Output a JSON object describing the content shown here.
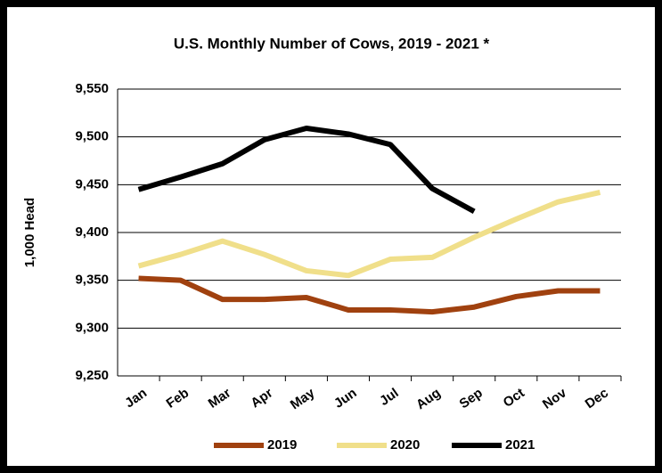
{
  "chart_data": {
    "type": "line",
    "title": "U.S. Monthly Number of Cows, 2019 - 2021 *",
    "y_label": "1,000 Head",
    "categories": [
      "Jan",
      "Feb",
      "Mar",
      "Apr",
      "May",
      "Jun",
      "Jul",
      "Aug",
      "Sep",
      "Oct",
      "Nov",
      "Dec"
    ],
    "series": [
      {
        "name": "2019",
        "color": "#a0410f",
        "values": [
          9352,
          9350,
          9330,
          9330,
          9332,
          9319,
          9319,
          9317,
          9322,
          9333,
          9339,
          9339
        ]
      },
      {
        "name": "2020",
        "color": "#f0df8a",
        "values": [
          9365,
          9377,
          9391,
          9377,
          9360,
          9355,
          9372,
          9374,
          9395,
          9414,
          9432,
          9442
        ]
      },
      {
        "name": "2021",
        "color": "#000000",
        "values": [
          9445,
          9458,
          9472,
          9497,
          9509,
          9503,
          9492,
          9446,
          9422,
          null,
          null,
          null
        ]
      }
    ],
    "ylim": [
      9250,
      9550
    ],
    "yticks": [
      {
        "value": 9250,
        "label": "9,250"
      },
      {
        "value": 9300,
        "label": "9,300"
      },
      {
        "value": 9350,
        "label": "9,350"
      },
      {
        "value": 9400,
        "label": "9,400"
      },
      {
        "value": 9450,
        "label": "9,450"
      },
      {
        "value": 9500,
        "label": "9,500"
      },
      {
        "value": 9550,
        "label": "9,550"
      }
    ],
    "grid": true,
    "legend": "bottom"
  }
}
